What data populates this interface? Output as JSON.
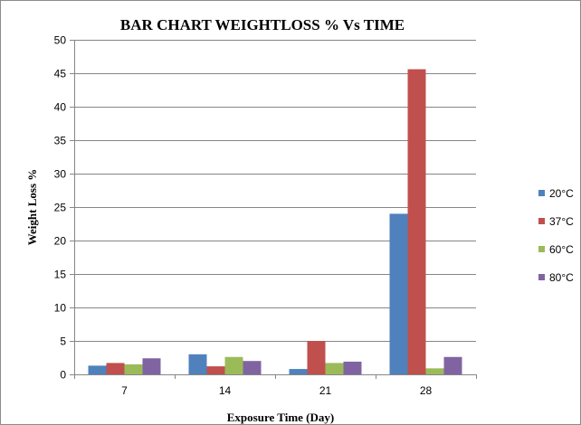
{
  "chart_data": {
    "type": "bar",
    "title": "BAR CHART WEIGHTLOSS % Vs TIME",
    "xlabel": "Exposure Time (Day)",
    "ylabel": "Weight Loss %",
    "categories": [
      "7",
      "14",
      "21",
      "28"
    ],
    "ylim": [
      0,
      50
    ],
    "yticks": [
      0,
      5,
      10,
      15,
      20,
      25,
      30,
      35,
      40,
      45,
      50
    ],
    "grid": true,
    "legend_position": "right",
    "series": [
      {
        "name": "20°C",
        "color": "#4f81bd",
        "values": [
          1.3,
          3.0,
          0.8,
          24.0
        ]
      },
      {
        "name": "37°C",
        "color": "#c0504d",
        "values": [
          1.7,
          1.2,
          5.0,
          45.6
        ]
      },
      {
        "name": "60°C",
        "color": "#9bbb59",
        "values": [
          1.5,
          2.6,
          1.7,
          0.9
        ]
      },
      {
        "name": "80°C",
        "color": "#8064a2",
        "values": [
          2.4,
          2.0,
          1.9,
          2.6
        ]
      }
    ]
  }
}
